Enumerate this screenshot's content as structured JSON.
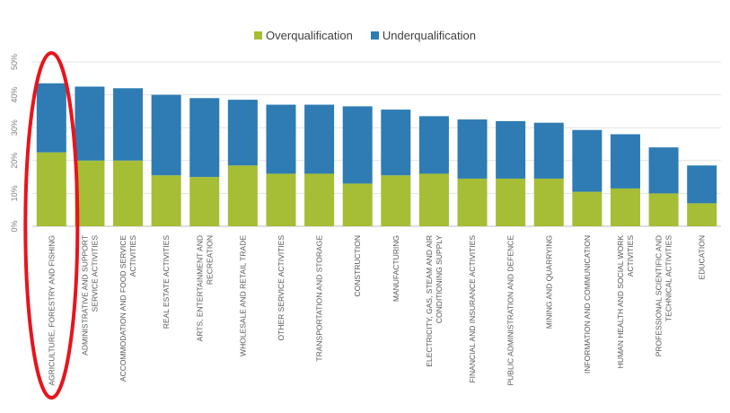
{
  "chart_data": {
    "type": "bar",
    "stacked": true,
    "title": "",
    "xlabel": "",
    "ylabel": "",
    "ylim": [
      0,
      50
    ],
    "yticks": [
      "0%",
      "10%",
      "20%",
      "30%",
      "40%",
      "50%"
    ],
    "grid": true,
    "legend_position": "top-center",
    "categories": [
      "AGRICULTURE, FORESTRY AND FISHING",
      [
        "ADMINISTRATIVE AND SUPPORT",
        "SERVICE ACTIVITIES"
      ],
      [
        "ACCOMMODATION AND FOOD SERVICE",
        "ACTIVITIES"
      ],
      "REAL ESTATE ACTIVITIES",
      [
        "ARTS, ENTERTAINMENT AND",
        "RECREATION"
      ],
      "WHOLESALE AND RETAIL TRADE",
      "OTHER SERVICE ACTIVITIES",
      "TRANSPORTATION AND STORAGE",
      "CONSTRUCTION",
      "MANUFACTURING",
      [
        "ELECTRICITY, GAS, STEAM AND AIR",
        "CONDITIONING SUPPLY"
      ],
      "FINANCIAL AND INSURANCE ACTIVITIES",
      "PUBLIC ADMINISTRATION AND DEFENCE",
      "MINING AND QUARRYING",
      "INFORMATION AND COMMUNICATION",
      [
        "HUMAN HEALTH AND SOCIAL WORK",
        "ACTIVITIES"
      ],
      [
        "PROFESSIONAL SCIENTIFIC AND",
        "TECHNICAL ACTIVITIES"
      ],
      "EDUCATION"
    ],
    "series": [
      {
        "name": "Overqualification",
        "color": "#a5be35",
        "values": [
          22.5,
          20,
          20,
          15.5,
          15,
          18.5,
          16,
          16,
          13,
          15.5,
          16,
          14.5,
          14.5,
          14.5,
          10.5,
          11.5,
          10,
          7
        ]
      },
      {
        "name": "Underqualification",
        "color": "#2e7cb3",
        "values": [
          21,
          22.5,
          22,
          24.5,
          24,
          20,
          21,
          21,
          23.5,
          20,
          17.5,
          18,
          17.5,
          17,
          18.8,
          16.5,
          14,
          11.5
        ]
      }
    ],
    "highlight": {
      "category_index": 0,
      "shape": "ellipse",
      "color": "#e8141c"
    }
  }
}
